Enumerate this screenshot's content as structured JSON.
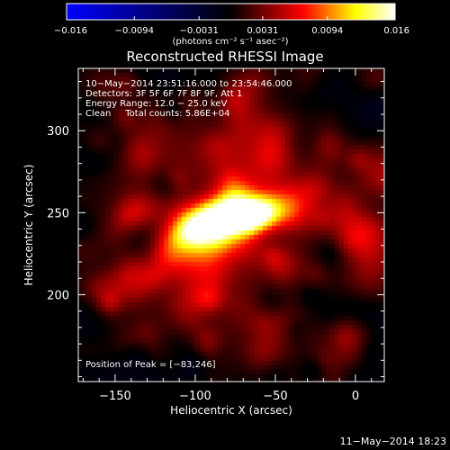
{
  "chart_data": {
    "type": "heatmap",
    "title": "Reconstructed RHESSI Image",
    "xlabel": "Heliocentric X (arcsec)",
    "ylabel": "Heliocentric Y (arcsec)",
    "xlim": [
      -173,
      18
    ],
    "ylim": [
      147,
      338
    ],
    "x_ticks": [
      -150,
      -100,
      -50,
      0
    ],
    "x_tick_labels": [
      "−150",
      "−100",
      "−50",
      "0"
    ],
    "y_ticks": [
      200,
      250,
      300
    ],
    "y_tick_labels": [
      "200",
      "250",
      "300"
    ],
    "colorbar": {
      "range": [
        -0.016,
        0.016
      ],
      "tick_values": [
        -0.016,
        -0.0094,
        -0.0031,
        0.0031,
        0.0094,
        0.016
      ],
      "tick_labels": [
        "−0.016",
        "−0.0094",
        "−0.0031",
        "0.0031",
        "0.0094",
        "0.016"
      ],
      "units_label": "(photons cm⁻² s⁻¹ asec⁻²)",
      "colors": [
        "#0000ff",
        "#000000",
        "#ff0000",
        "#ffff00",
        "#ffffff"
      ]
    },
    "info_lines": [
      "10−May−2014 23:51:16.000 to 23:54:46.000",
      "Detectors: 3F 5F 6F 7F 8F 9F, Att 1",
      "Energy Range: 12.0 − 25.0 keV",
      "Clean     Total counts: 5.86E+04"
    ],
    "peak_label": "Position of Peak = [−83,246]",
    "peak_position": [
      -83,
      246
    ],
    "source": {
      "center": [
        -83,
        246
      ],
      "peak_value": 0.016,
      "elongation_deg": -15,
      "extent_arcsec": [
        28,
        9
      ]
    }
  },
  "footer": {
    "timestamp": "11−May−2014 18:23"
  }
}
